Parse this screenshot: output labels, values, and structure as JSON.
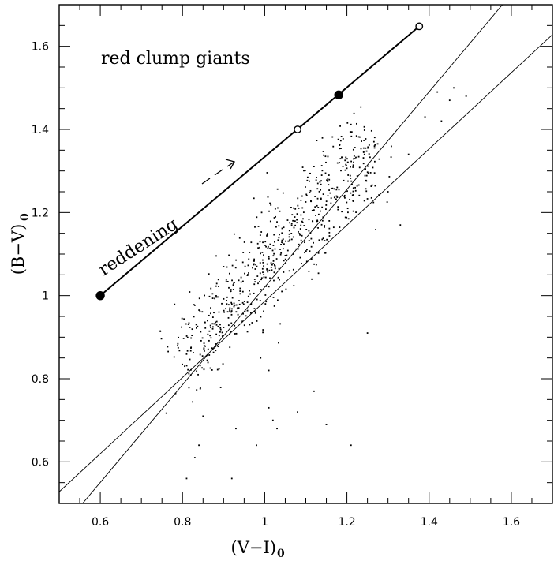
{
  "chart_data": {
    "type": "scatter",
    "xlabel": "(V−I)",
    "xlabel_sub": "0",
    "ylabel": "(B−V)",
    "ylabel_sub": "0",
    "xlim": [
      0.5,
      1.7
    ],
    "ylim": [
      0.5,
      1.7
    ],
    "x_ticks": [
      0.6,
      0.8,
      1,
      1.2,
      1.4,
      1.6
    ],
    "x_tick_labels": [
      "0.6",
      "0.8",
      "1",
      "1.2",
      "1.4",
      "1.6"
    ],
    "y_ticks": [
      0.6,
      0.8,
      1,
      1.2,
      1.4,
      1.6
    ],
    "y_tick_labels": [
      "0.6",
      "0.8",
      "1",
      "1.2",
      "1.4",
      "1.6"
    ],
    "annotations": {
      "title_text": "red clump giants",
      "reddening_text": "reddening"
    },
    "reddening_vector": {
      "x": [
        0.6,
        1.376
      ],
      "y": [
        1.0,
        1.648
      ]
    },
    "reddening_markers": [
      {
        "x": 0.6,
        "y": 1.0,
        "filled": true
      },
      {
        "x": 1.08,
        "y": 1.4,
        "filled": false
      },
      {
        "x": 1.18,
        "y": 1.483,
        "filled": true
      },
      {
        "x": 1.376,
        "y": 1.648,
        "filled": false
      }
    ],
    "reference_lines": [
      {
        "x": [
          0.5,
          1.7
        ],
        "y": [
          0.528,
          1.628
        ]
      },
      {
        "x": [
          0.5,
          1.7
        ],
        "y": [
          0.433,
          1.843
        ]
      }
    ],
    "scatter_cloud": {
      "x_center": [
        0.8,
        1.25
      ],
      "y_center": [
        0.85,
        1.35
      ],
      "spread": 0.055,
      "n": 700
    },
    "outliers": [
      {
        "x": 0.81,
        "y": 0.56
      },
      {
        "x": 0.92,
        "y": 0.56
      },
      {
        "x": 0.93,
        "y": 0.68
      },
      {
        "x": 0.98,
        "y": 0.64
      },
      {
        "x": 1.01,
        "y": 0.73
      },
      {
        "x": 1.03,
        "y": 0.68
      },
      {
        "x": 1.02,
        "y": 0.7
      },
      {
        "x": 1.08,
        "y": 0.72
      },
      {
        "x": 1.15,
        "y": 0.69
      },
      {
        "x": 1.15,
        "y": 0.69
      },
      {
        "x": 1.21,
        "y": 0.64
      },
      {
        "x": 1.12,
        "y": 0.77
      },
      {
        "x": 0.85,
        "y": 0.71
      },
      {
        "x": 0.84,
        "y": 0.64
      },
      {
        "x": 0.83,
        "y": 0.61
      },
      {
        "x": 1.25,
        "y": 0.91
      },
      {
        "x": 1.33,
        "y": 1.17
      },
      {
        "x": 1.43,
        "y": 1.42
      },
      {
        "x": 1.49,
        "y": 1.48
      },
      {
        "x": 1.46,
        "y": 1.5
      },
      {
        "x": 1.42,
        "y": 1.49
      },
      {
        "x": 1.39,
        "y": 1.43
      },
      {
        "x": 1.45,
        "y": 1.47
      },
      {
        "x": 1.35,
        "y": 1.34
      },
      {
        "x": 1.3,
        "y": 1.25
      },
      {
        "x": 1.01,
        "y": 0.82
      },
      {
        "x": 0.99,
        "y": 0.85
      }
    ]
  }
}
